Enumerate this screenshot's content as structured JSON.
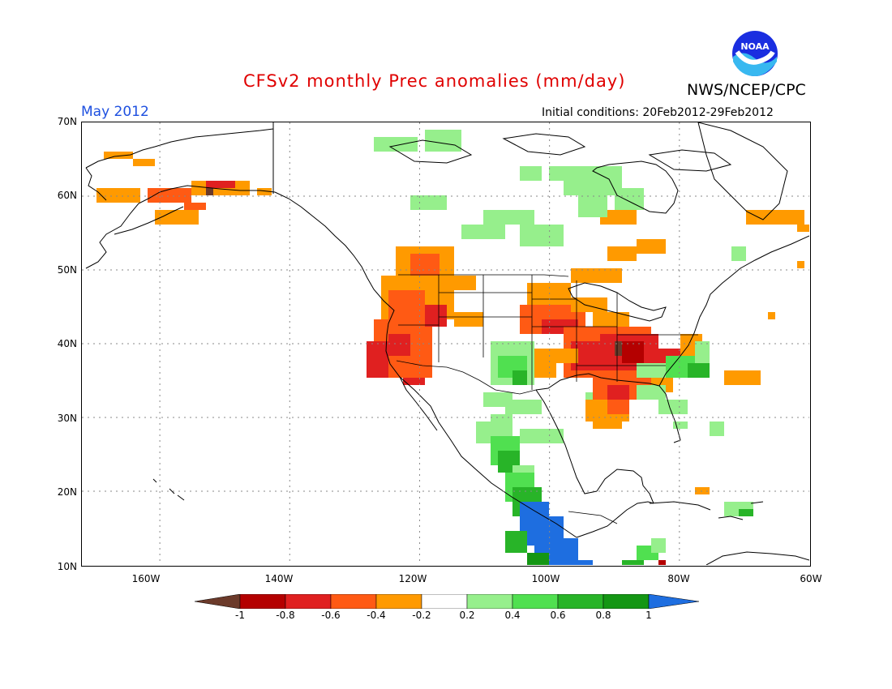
{
  "header": {
    "title": "CFSv2 monthly Prec anomalies (mm/day)",
    "agency": "NWS/NCEP/CPC",
    "logo_text": "NOAA",
    "month": "May 2012",
    "init_conditions": "Initial conditions: 20Feb2012-29Feb2012"
  },
  "map": {
    "projection": "lat-lon",
    "lon_range": [
      -172,
      -60
    ],
    "lat_range": [
      10,
      70
    ],
    "grid": true,
    "lat_labels": [
      "70N",
      "60N",
      "50N",
      "40N",
      "30N",
      "20N",
      "10N"
    ],
    "lon_labels": [
      "160W",
      "140W",
      "120W",
      "100W",
      "80W",
      "60W"
    ]
  },
  "colorbar": {
    "labels": [
      "-1",
      "-0.8",
      "-0.6",
      "-0.4",
      "-0.2",
      "0.2",
      "0.4",
      "0.6",
      "0.8",
      "1"
    ],
    "colors": [
      "#6b3a2a",
      "#b40000",
      "#e02020",
      "#ff5a14",
      "#ff9a00",
      "#ffffff",
      "#96ef8c",
      "#50e050",
      "#28b428",
      "#149614",
      "#1e6ee0"
    ]
  },
  "colors": {
    "title": "#e00000",
    "month": "#1e50e0",
    "grid": "#888888"
  }
}
